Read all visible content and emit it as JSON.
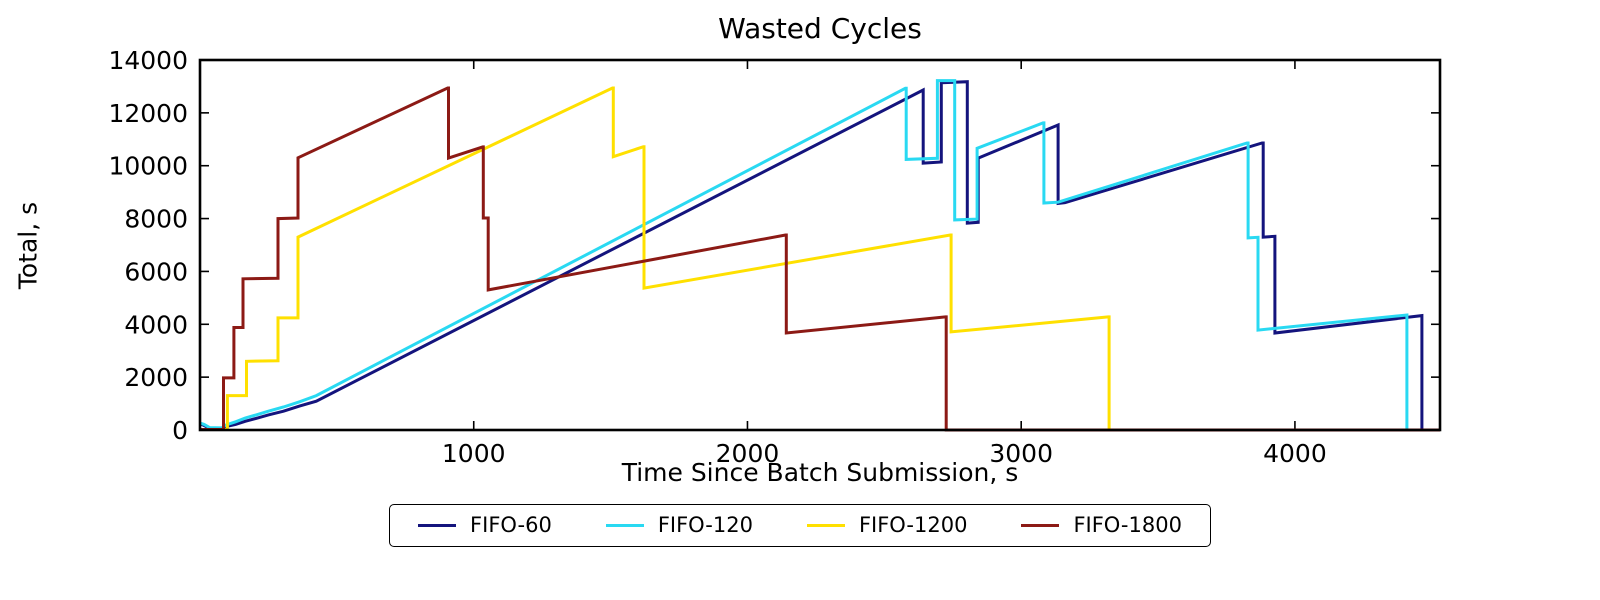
{
  "chart_data": {
    "type": "line",
    "title": "Wasted Cycles",
    "xlabel": "Time Since Batch Submission, s",
    "ylabel": "Total, s",
    "xlim": [
      0,
      4530
    ],
    "ylim": [
      0,
      14000
    ],
    "xticks": [
      1000,
      2000,
      3000,
      4000
    ],
    "yticks": [
      0,
      2000,
      4000,
      6000,
      8000,
      10000,
      12000,
      14000
    ],
    "grid": false,
    "legend_position": "bottom-center",
    "series": [
      {
        "name": "FIFO-60",
        "color": "#14147d",
        "points": [
          [
            0,
            230
          ],
          [
            15,
            170
          ],
          [
            35,
            60
          ],
          [
            80,
            50
          ],
          [
            95,
            130
          ],
          [
            130,
            210
          ],
          [
            165,
            330
          ],
          [
            205,
            440
          ],
          [
            250,
            570
          ],
          [
            305,
            710
          ],
          [
            365,
            910
          ],
          [
            425,
            1090
          ],
          [
            2642,
            12865
          ],
          [
            2642,
            10100
          ],
          [
            2708,
            10140
          ],
          [
            2708,
            13140
          ],
          [
            2803,
            13180
          ],
          [
            2803,
            7830
          ],
          [
            2843,
            7860
          ],
          [
            2843,
            10290
          ],
          [
            3135,
            11540
          ],
          [
            3135,
            8570
          ],
          [
            3160,
            8600
          ],
          [
            3880,
            10860
          ],
          [
            3884,
            10860
          ],
          [
            3884,
            7300
          ],
          [
            3927,
            7330
          ],
          [
            3927,
            3670
          ],
          [
            4464,
            4330
          ],
          [
            4464,
            0
          ],
          [
            4530,
            0
          ]
        ]
      },
      {
        "name": "FIFO-120",
        "color": "#29d9f2",
        "points": [
          [
            0,
            260
          ],
          [
            15,
            210
          ],
          [
            35,
            90
          ],
          [
            80,
            80
          ],
          [
            95,
            190
          ],
          [
            130,
            310
          ],
          [
            165,
            450
          ],
          [
            205,
            570
          ],
          [
            250,
            710
          ],
          [
            305,
            870
          ],
          [
            365,
            1070
          ],
          [
            425,
            1300
          ],
          [
            2577,
            12930
          ],
          [
            2580,
            12930
          ],
          [
            2580,
            10240
          ],
          [
            2694,
            10280
          ],
          [
            2694,
            13220
          ],
          [
            2757,
            13220
          ],
          [
            2757,
            7950
          ],
          [
            2839,
            7980
          ],
          [
            2839,
            10660
          ],
          [
            3080,
            11620
          ],
          [
            3083,
            11620
          ],
          [
            3083,
            8590
          ],
          [
            3135,
            8620
          ],
          [
            3825,
            10860
          ],
          [
            3829,
            10860
          ],
          [
            3829,
            7270
          ],
          [
            3865,
            7290
          ],
          [
            3865,
            3780
          ],
          [
            4409,
            4350
          ],
          [
            4409,
            0
          ],
          [
            4530,
            0
          ]
        ]
      },
      {
        "name": "FIFO-1200",
        "color": "#ffe000",
        "points": [
          [
            0,
            20
          ],
          [
            100,
            20
          ],
          [
            100,
            1300
          ],
          [
            170,
            1300
          ],
          [
            170,
            2600
          ],
          [
            285,
            2620
          ],
          [
            285,
            4240
          ],
          [
            358,
            4240
          ],
          [
            358,
            7300
          ],
          [
            1507,
            12940
          ],
          [
            1510,
            12940
          ],
          [
            1510,
            10340
          ],
          [
            1620,
            10720
          ],
          [
            1622,
            10720
          ],
          [
            1622,
            5370
          ],
          [
            2741,
            7380
          ],
          [
            2744,
            7380
          ],
          [
            2744,
            3710
          ],
          [
            3318,
            4280
          ],
          [
            3321,
            4280
          ],
          [
            3321,
            0
          ],
          [
            4530,
            0
          ]
        ]
      },
      {
        "name": "FIFO-1800",
        "color": "#8c1a15",
        "points": [
          [
            0,
            20
          ],
          [
            86,
            20
          ],
          [
            86,
            1970
          ],
          [
            124,
            1970
          ],
          [
            124,
            3880
          ],
          [
            157,
            3880
          ],
          [
            157,
            5720
          ],
          [
            285,
            5740
          ],
          [
            285,
            8000
          ],
          [
            358,
            8020
          ],
          [
            358,
            10300
          ],
          [
            905,
            12940
          ],
          [
            908,
            12940
          ],
          [
            908,
            10290
          ],
          [
            1033,
            10710
          ],
          [
            1035,
            10710
          ],
          [
            1035,
            8020
          ],
          [
            1053,
            8020
          ],
          [
            1053,
            5300
          ],
          [
            2139,
            7380
          ],
          [
            2142,
            7380
          ],
          [
            2142,
            3670
          ],
          [
            2723,
            4280
          ],
          [
            2726,
            4280
          ],
          [
            2726,
            0
          ],
          [
            4530,
            0
          ]
        ]
      }
    ]
  },
  "frame": {
    "background": "#ffffff",
    "axis_color": "#000000",
    "line_width": 3
  }
}
